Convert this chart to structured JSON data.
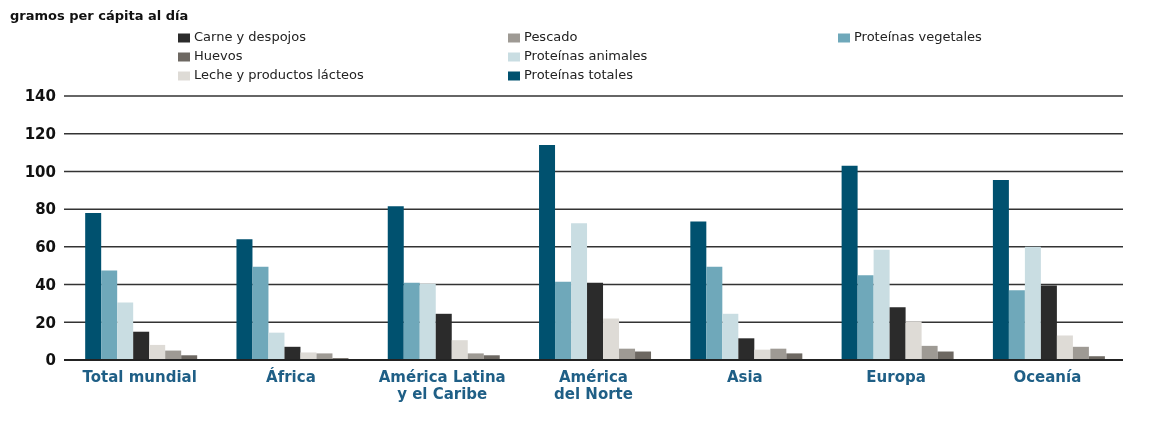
{
  "chart_data": {
    "type": "bar",
    "ylabel": "gramos per cápita al día",
    "categories": [
      "Total mundial",
      "África",
      "América Latina y el Caribe",
      "América del Norte",
      "Asia",
      "Europa",
      "Oceanía"
    ],
    "series": [
      {
        "name": "Proteínas totales",
        "color": "#00516f",
        "values": [
          78,
          64,
          81.5,
          114,
          73.5,
          103,
          95.5
        ]
      },
      {
        "name": "Proteínas vegetales",
        "color": "#6fa8ba",
        "values": [
          47.5,
          49.5,
          41,
          41.5,
          49.5,
          45,
          37
        ]
      },
      {
        "name": "Proteínas animales",
        "color": "#c9dde2",
        "values": [
          30.5,
          14.5,
          40.5,
          72.5,
          24.5,
          58.5,
          60
        ]
      },
      {
        "name": "Carne y despojos",
        "color": "#2b2b2b",
        "values": [
          15,
          7,
          24.5,
          41,
          11.5,
          28,
          39.5
        ]
      },
      {
        "name": "Leche y productos lácteos",
        "color": "#dedbd6",
        "values": [
          8,
          4,
          10.5,
          22,
          5.5,
          20.5,
          13
        ]
      },
      {
        "name": "Pescado",
        "color": "#9e9a94",
        "values": [
          5,
          3.5,
          3.5,
          6,
          6,
          7.5,
          7
        ]
      },
      {
        "name": "Huevos",
        "color": "#6d6862",
        "values": [
          2.5,
          1,
          2.5,
          4.5,
          3.5,
          4.5,
          2
        ]
      }
    ],
    "ylim": [
      0,
      140
    ],
    "yticks": [
      0,
      20,
      40,
      60,
      80,
      100,
      120,
      140
    ],
    "grid": "y",
    "legend": "top"
  }
}
